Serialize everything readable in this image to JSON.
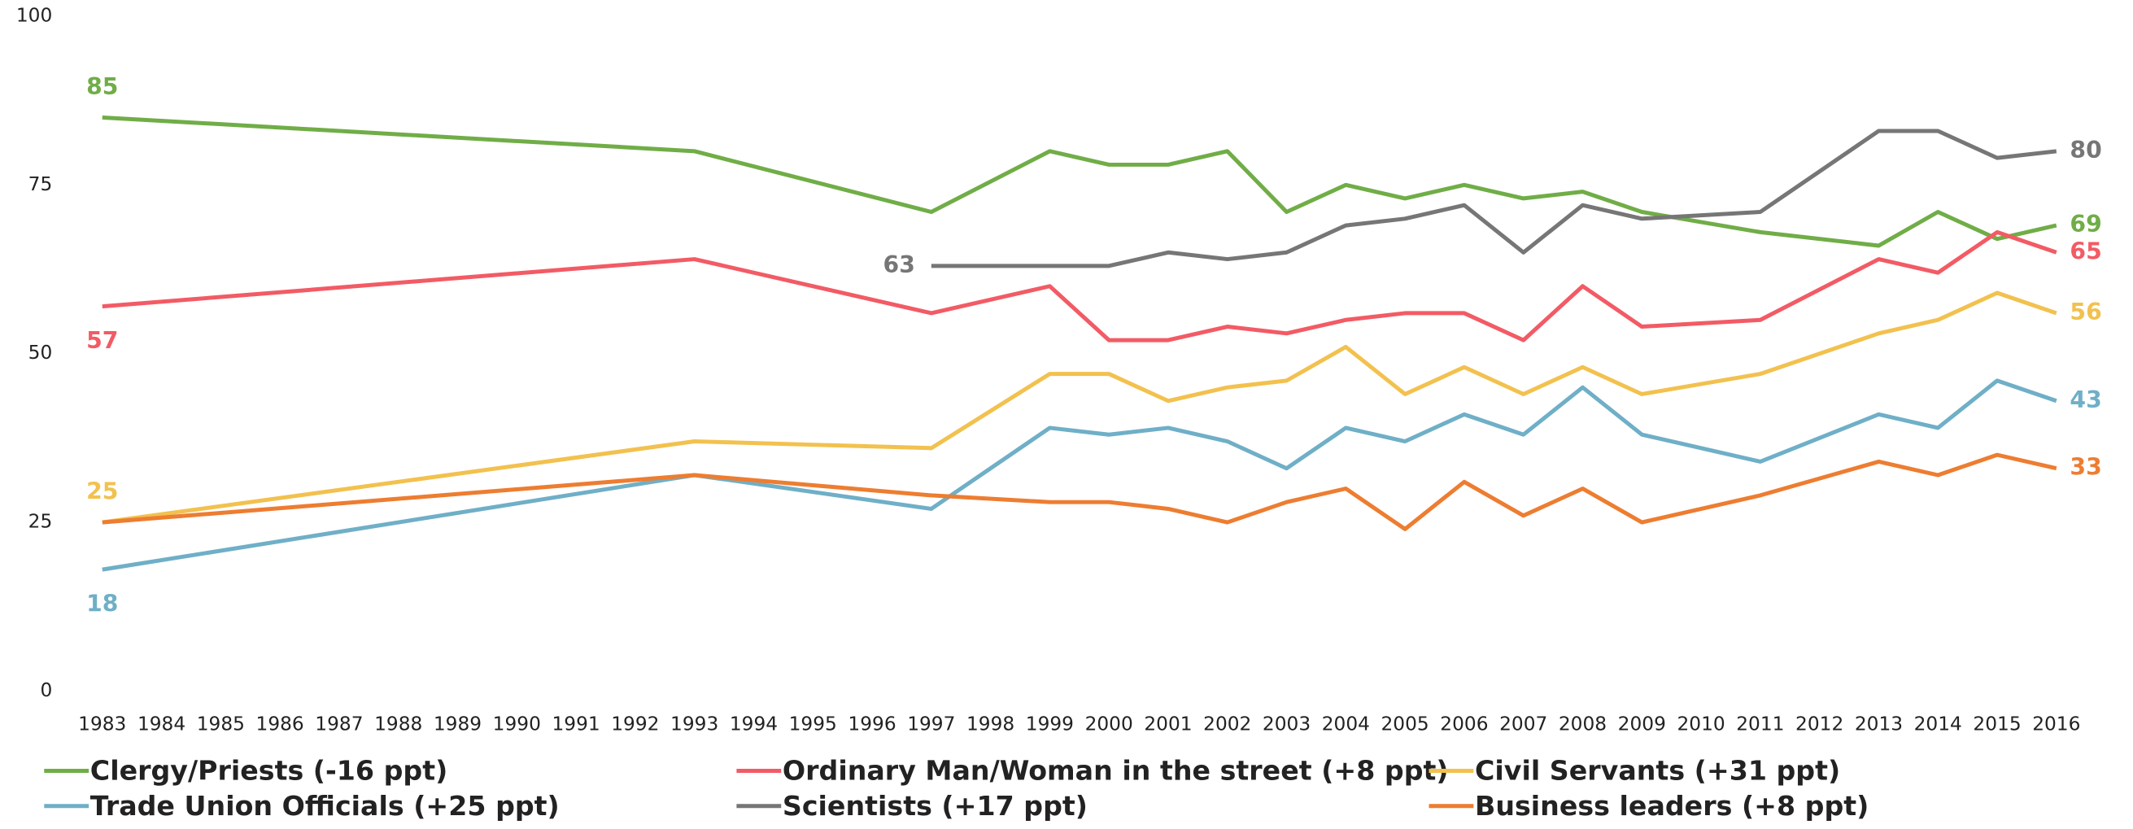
{
  "chart_data": {
    "type": "line",
    "x": [
      1983,
      1993,
      1997,
      1999,
      2000,
      2001,
      2002,
      2003,
      2004,
      2005,
      2006,
      2007,
      2008,
      2009,
      2011,
      2013,
      2014,
      2015,
      2016
    ],
    "xlim": [
      1983,
      2016
    ],
    "xticks": [
      1983,
      1984,
      1985,
      1986,
      1987,
      1988,
      1989,
      1990,
      1991,
      1992,
      1993,
      1994,
      1995,
      1996,
      1997,
      1998,
      1999,
      2000,
      2001,
      2002,
      2003,
      2004,
      2005,
      2006,
      2007,
      2008,
      2009,
      2010,
      2011,
      2012,
      2013,
      2014,
      2015,
      2016
    ],
    "ylim": [
      0,
      100
    ],
    "yticks": [
      0,
      25,
      50,
      75,
      100
    ],
    "grid": false,
    "legend": "bottom",
    "series": [
      {
        "name": "Clergy/Priests (-16 ppt)",
        "color": "#70ad47",
        "values": [
          85,
          80,
          71,
          80,
          78,
          78,
          80,
          71,
          75,
          73,
          75,
          73,
          74,
          71,
          68,
          66,
          71,
          67,
          69
        ]
      },
      {
        "name": "Ordinary Man/Woman in the street (+8 ppt)",
        "color": "#f25b65",
        "values": [
          57,
          64,
          56,
          60,
          52,
          52,
          54,
          53,
          55,
          56,
          56,
          52,
          60,
          54,
          55,
          64,
          62,
          68,
          65
        ]
      },
      {
        "name": "Civil Servants (+31 ppt)",
        "color": "#f2c14e",
        "values": [
          25,
          37,
          36,
          47,
          47,
          43,
          45,
          46,
          51,
          44,
          48,
          44,
          48,
          44,
          47,
          53,
          55,
          59,
          56
        ]
      },
      {
        "name": "Trade Union Officials (+25 ppt)",
        "color": "#6fafc7",
        "values": [
          18,
          32,
          27,
          39,
          38,
          39,
          37,
          33,
          39,
          37,
          41,
          38,
          45,
          38,
          34,
          41,
          39,
          46,
          43
        ]
      },
      {
        "name": "Scientists (+17 ppt)",
        "color": "#767676",
        "values": [
          null,
          null,
          63,
          63,
          63,
          65,
          64,
          65,
          69,
          70,
          72,
          65,
          72,
          70,
          71,
          83,
          83,
          79,
          80
        ]
      },
      {
        "name": "Business leaders (+8 ppt)",
        "color": "#ed7d31",
        "values": [
          25,
          32,
          29,
          28,
          28,
          27,
          25,
          28,
          30,
          24,
          31,
          26,
          30,
          25,
          29,
          34,
          32,
          35,
          33
        ]
      }
    ]
  }
}
